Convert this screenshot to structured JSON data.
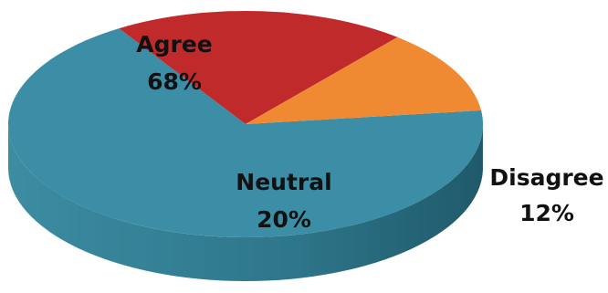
{
  "chart_data": {
    "type": "pie",
    "style": "3d-tilted",
    "slices": [
      {
        "label": "Agree",
        "value": 68,
        "value_text": "68%",
        "color": "#3B8EA5"
      },
      {
        "label": "Neutral",
        "value": 20,
        "value_text": "20%",
        "color": "#C02A2A"
      },
      {
        "label": "Disagree",
        "value": 12,
        "value_text": "12%",
        "color": "#F08A32"
      }
    ]
  }
}
